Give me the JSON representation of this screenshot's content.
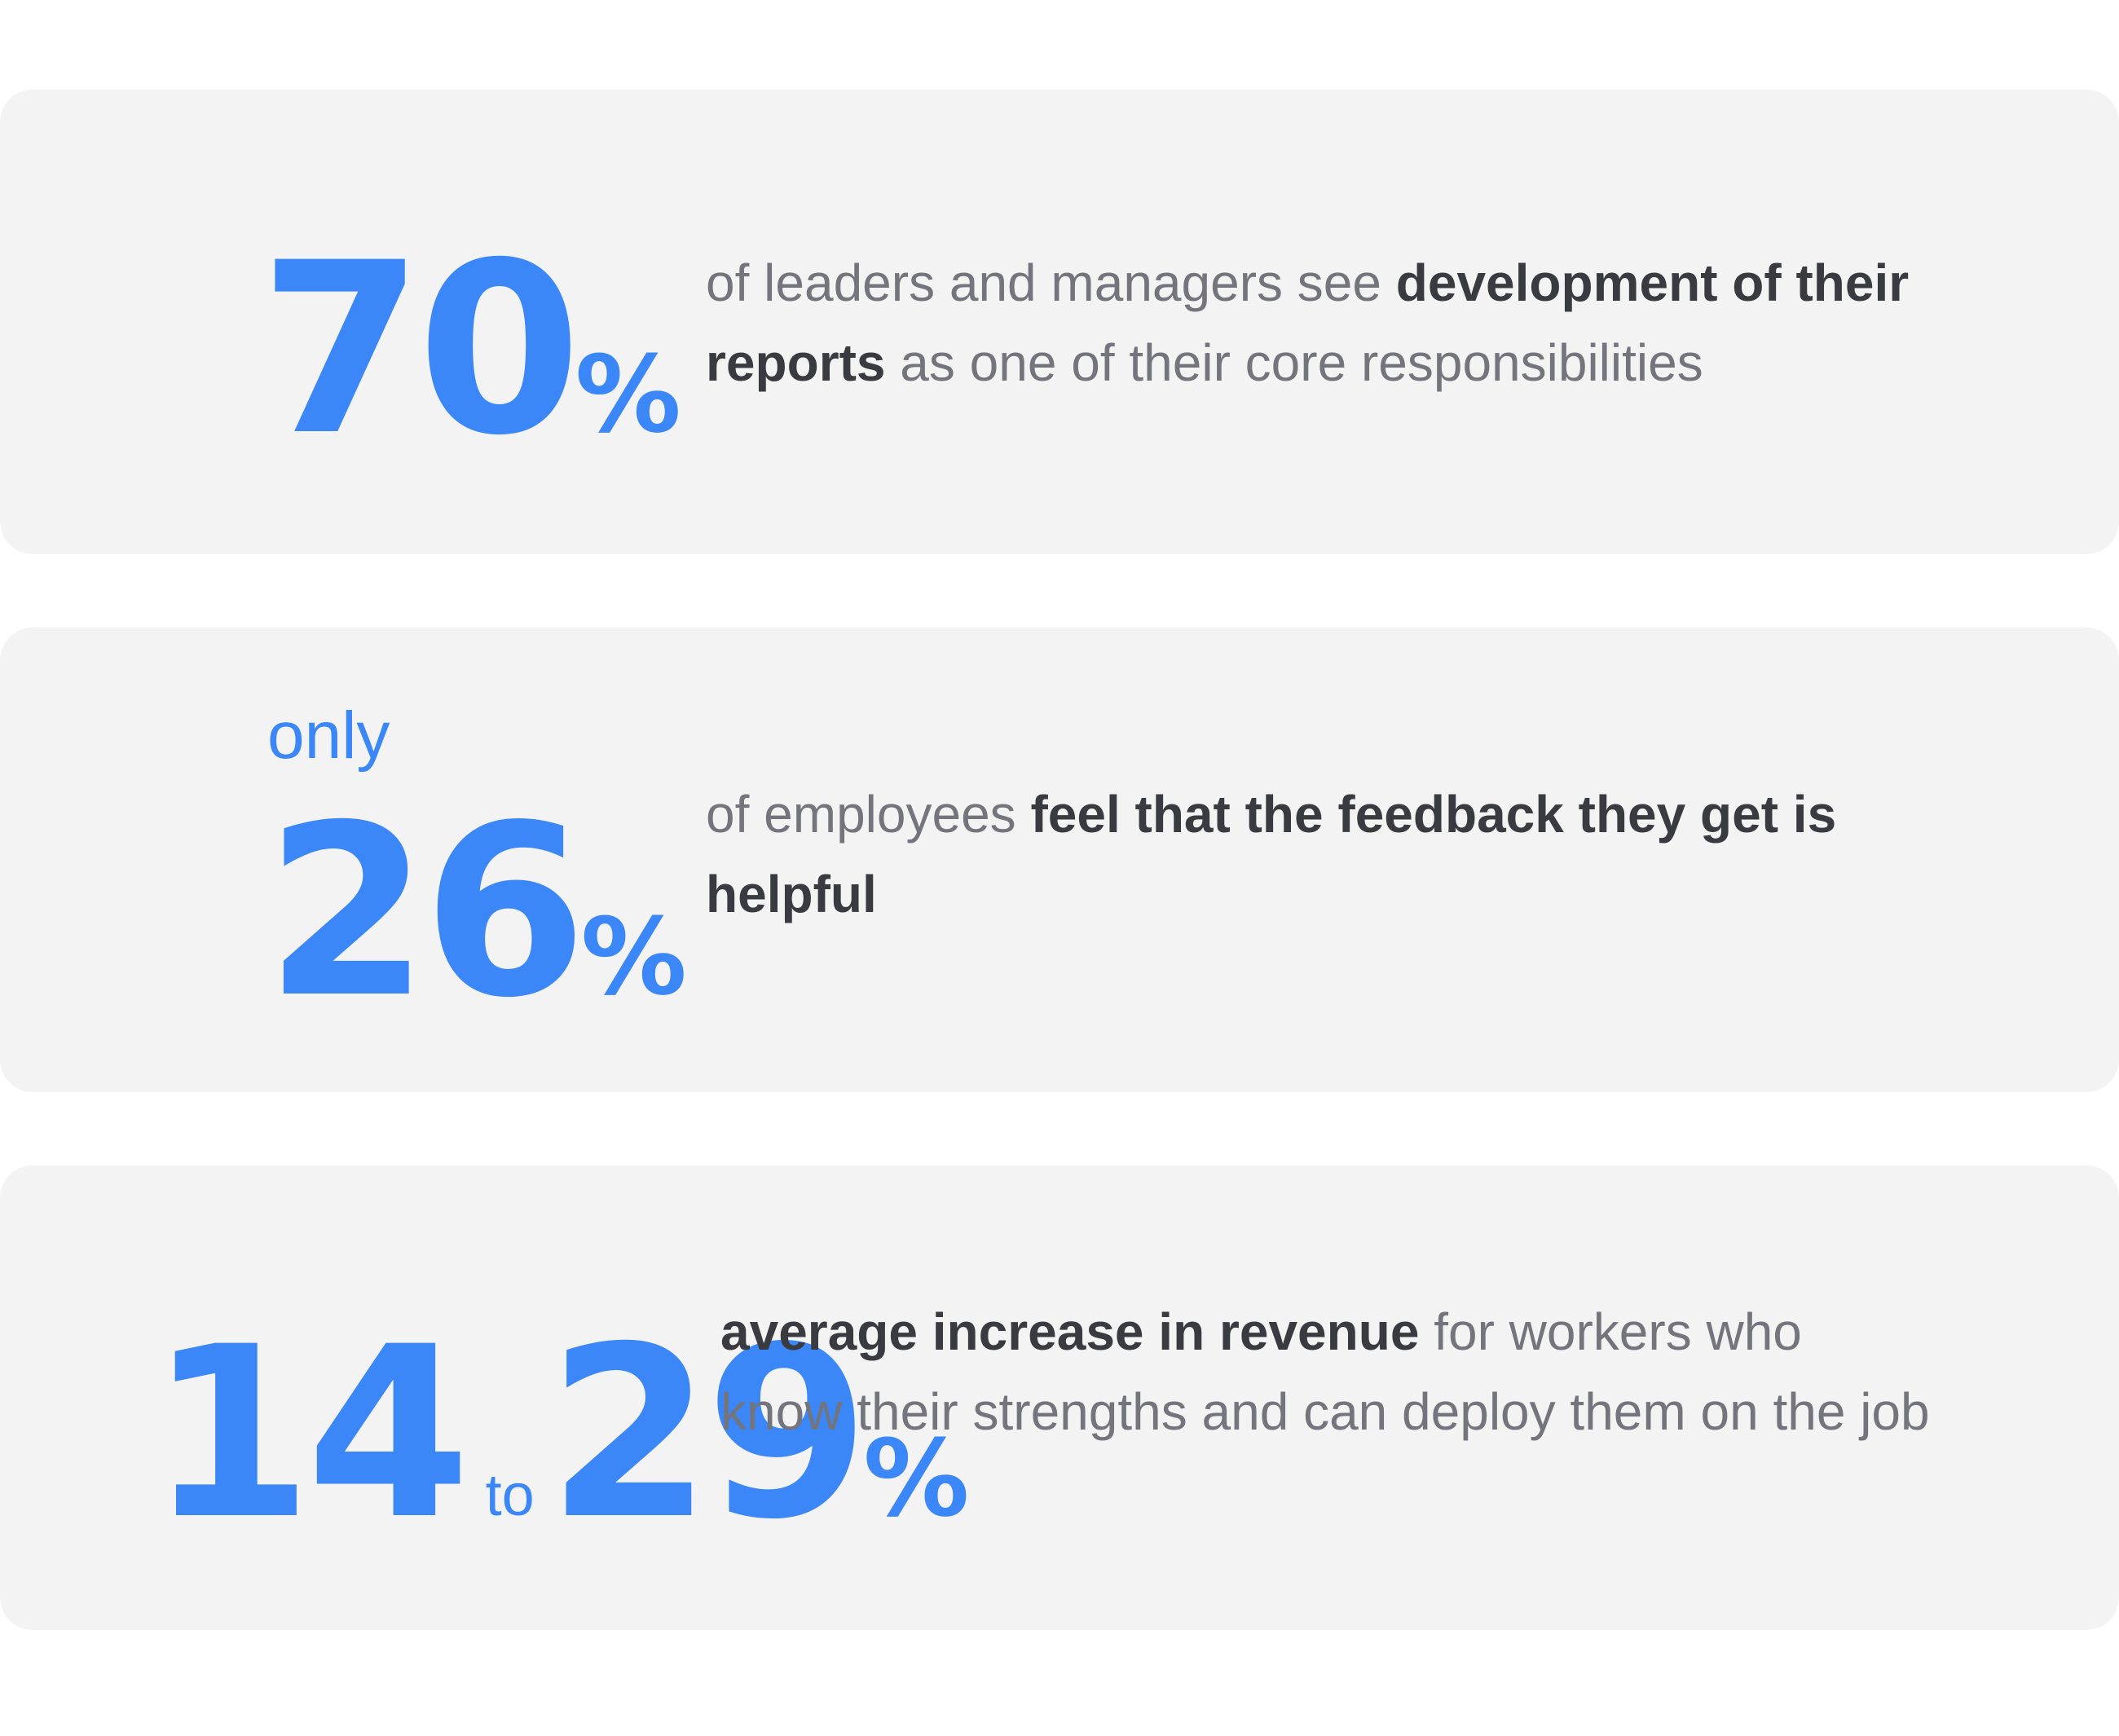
{
  "stats": [
    {
      "prefix": "",
      "value": "70",
      "unit": "%",
      "text_parts": [
        {
          "text": "of leaders and managers see ",
          "bold": false
        },
        {
          "text": "development of their reports",
          "bold": true
        },
        {
          "text": " as one of their core responsibilities",
          "bold": false
        }
      ]
    },
    {
      "prefix": "only",
      "value": "26",
      "unit": "%",
      "text_parts": [
        {
          "text": "of employees ",
          "bold": false
        },
        {
          "text": "feel that the feedback they get is helpful",
          "bold": true
        }
      ]
    },
    {
      "range_start": "14",
      "range_word": "to",
      "range_end": "29",
      "unit": "%",
      "text_parts": [
        {
          "text": "average increase in revenue",
          "bold": true
        },
        {
          "text": " for workers who know their strengths and can deploy them on the job",
          "bold": false
        }
      ]
    }
  ],
  "colors": {
    "accent": "#3b87f7",
    "card_bg": "#f3f3f4",
    "text_muted": "#74747c",
    "text_strong": "#3a3b40"
  }
}
